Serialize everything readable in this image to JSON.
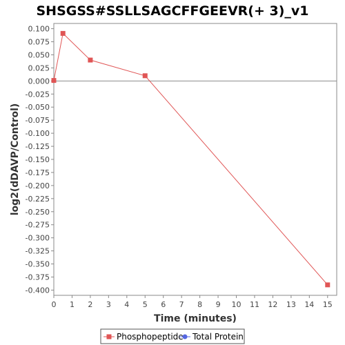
{
  "chart_data": {
    "type": "line",
    "title": "SHSGSS#SSLLSAGCFFGEEVR(+ 3)_v1",
    "xlabel": "Time (minutes)",
    "ylabel": "log2(dDAVP/Control)",
    "xlim": [
      0,
      15.5
    ],
    "ylim": [
      -0.41,
      0.11
    ],
    "x_ticks": [
      0,
      1,
      2,
      3,
      4,
      5,
      6,
      7,
      8,
      9,
      10,
      11,
      12,
      13,
      14,
      15
    ],
    "y_ticks": [
      0.1,
      0.075,
      0.05,
      0.025,
      0.0,
      -0.025,
      -0.05,
      -0.075,
      -0.1,
      -0.125,
      -0.15,
      -0.175,
      -0.2,
      -0.225,
      -0.25,
      -0.275,
      -0.3,
      -0.325,
      -0.35,
      -0.375,
      -0.4
    ],
    "series": [
      {
        "name": "Phosphopeptide",
        "color": "#e05555",
        "marker": "square",
        "x": [
          0,
          0.5,
          2,
          5,
          15
        ],
        "y": [
          0.001,
          0.091,
          0.04,
          0.01,
          -0.39
        ]
      },
      {
        "name": "Total Protein",
        "color": "#5566e0",
        "marker": "circle",
        "x": [],
        "y": []
      }
    ],
    "zero_line": true,
    "grid": false,
    "legend_position": "bottom-center"
  }
}
